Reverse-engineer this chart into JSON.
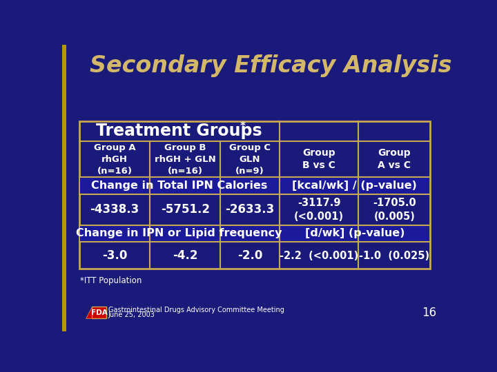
{
  "title": "Secondary Efficacy Analysis",
  "title_color": "#D4B86A",
  "bg_color": "#1a1a7a",
  "table_border_color": "#C8A850",
  "text_color_white": "#FFFFFF",
  "table_header": "Treatment Groups",
  "table_header_star": "*",
  "col_headers": [
    [
      "Group A",
      "rhGH",
      "(n=16)"
    ],
    [
      "Group B",
      "rhGH + GLN",
      "(n=16)"
    ],
    [
      "Group C",
      "GLN",
      "(n=9)"
    ],
    [
      "Group",
      "B vs C",
      ""
    ],
    [
      "Group",
      "A vs C",
      ""
    ]
  ],
  "row1_label": "Change in Total IPN Calories",
  "row1_right": "[kcal/wk] / (p-value)",
  "row1_data_left": [
    "-4338.3",
    "-5751.2",
    "-2633.3"
  ],
  "row1_data_right": [
    "-3117.9\n(<0.001)",
    "-1705.0\n(0.005)"
  ],
  "row2_label": "Change in IPN or Lipid frequency",
  "row2_right": "[d/wk] (p-value)",
  "row2_data_left": [
    "-3.0",
    "-4.2",
    "-2.0"
  ],
  "row2_data_right": [
    "-2.2  (<0.001)",
    "-1.0  (0.025)"
  ],
  "footnote": "*ITT Population",
  "footer_line1": "Gastrointestinal Drugs Advisory Committee Meeting",
  "footer_line2": "June 25, 2003",
  "page_number": "16",
  "section_header_bg": "#1a1a9a",
  "col_divider_color": "#C8A850"
}
